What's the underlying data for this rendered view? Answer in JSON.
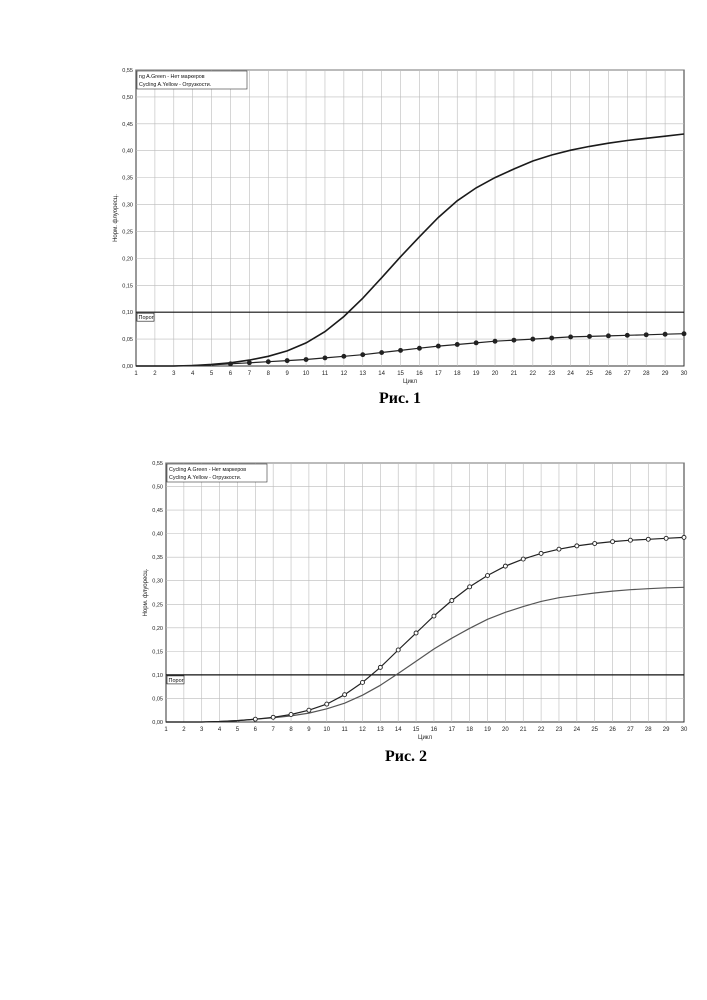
{
  "figures": [
    {
      "caption": "Рис. 1",
      "chart_data": {
        "type": "line",
        "xlabel": "Цикл",
        "ylabel": "Норм. флуоресц.",
        "xlim": [
          1,
          30
        ],
        "ylim": [
          0,
          0.55
        ],
        "x_ticks": [
          "1",
          "2",
          "3",
          "4",
          "5",
          "6",
          "7",
          "8",
          "9",
          "10",
          "11",
          "12",
          "13",
          "14",
          "15",
          "16",
          "17",
          "18",
          "19",
          "20",
          "21",
          "22",
          "23",
          "24",
          "25",
          "26",
          "27",
          "28",
          "29",
          "30"
        ],
        "y_ticks": [
          "0,00",
          "0,05",
          "0,10",
          "0,15",
          "0,20",
          "0,25",
          "0,30",
          "0,35",
          "0,40",
          "0,45",
          "0,50",
          "0,55"
        ],
        "grid": true,
        "legend": "top-left",
        "threshold": {
          "label": "Порог",
          "value": 0.1
        },
        "x": [
          1,
          2,
          3,
          4,
          5,
          6,
          7,
          8,
          9,
          10,
          11,
          12,
          13,
          14,
          15,
          16,
          17,
          18,
          19,
          20,
          21,
          22,
          23,
          24,
          25,
          26,
          27,
          28,
          29,
          30
        ],
        "series": [
          {
            "name": "ng A.Green - Нет маркеров",
            "marker": false,
            "values": [
              0.0,
              0.0,
              0.0,
              0.001,
              0.003,
              0.006,
              0.011,
              0.018,
              0.028,
              0.043,
              0.064,
              0.092,
              0.126,
              0.164,
              0.203,
              0.24,
              0.276,
              0.307,
              0.331,
              0.35,
              0.366,
              0.381,
              0.392,
              0.401,
              0.408,
              0.414,
              0.419,
              0.423,
              0.427,
              0.431
            ]
          },
          {
            "name": "Cycling A.Yellow - Огрузкости.",
            "marker": true,
            "values": [
              0.0,
              0.0,
              0.0,
              0.001,
              0.002,
              0.004,
              0.006,
              0.008,
              0.01,
              0.012,
              0.015,
              0.018,
              0.021,
              0.025,
              0.029,
              0.033,
              0.037,
              0.04,
              0.043,
              0.046,
              0.048,
              0.05,
              0.052,
              0.054,
              0.055,
              0.056,
              0.057,
              0.058,
              0.059,
              0.06
            ]
          }
        ]
      }
    },
    {
      "caption": "Рис. 2",
      "chart_data": {
        "type": "line",
        "xlabel": "Цикл",
        "ylabel": "Норм. флуоресц.",
        "xlim": [
          1,
          30
        ],
        "ylim": [
          0,
          0.55
        ],
        "x_ticks": [
          "1",
          "2",
          "3",
          "4",
          "5",
          "6",
          "7",
          "8",
          "9",
          "10",
          "11",
          "12",
          "13",
          "14",
          "15",
          "16",
          "17",
          "18",
          "19",
          "20",
          "21",
          "22",
          "23",
          "24",
          "25",
          "26",
          "27",
          "28",
          "29",
          "30"
        ],
        "y_ticks": [
          "0,00",
          "0,05",
          "0,10",
          "0,15",
          "0,20",
          "0,25",
          "0,30",
          "0,35",
          "0,40",
          "0,45",
          "0,50",
          "0,55"
        ],
        "grid": true,
        "legend": "top-left",
        "threshold": {
          "label": "Порог",
          "value": 0.1
        },
        "x": [
          1,
          2,
          3,
          4,
          5,
          6,
          7,
          8,
          9,
          10,
          11,
          12,
          13,
          14,
          15,
          16,
          17,
          18,
          19,
          20,
          21,
          22,
          23,
          24,
          25,
          26,
          27,
          28,
          29,
          30
        ],
        "series": [
          {
            "name": "Cycling A.Green - Нет маркеров",
            "marker": false,
            "values": [
              0.0,
              0.0,
              0.0,
              0.001,
              0.003,
              0.006,
              0.009,
              0.013,
              0.019,
              0.028,
              0.04,
              0.057,
              0.078,
              0.103,
              0.129,
              0.155,
              0.178,
              0.199,
              0.218,
              0.233,
              0.245,
              0.256,
              0.264,
              0.269,
              0.274,
              0.278,
              0.281,
              0.283,
              0.285,
              0.286
            ]
          },
          {
            "name": "Cycling A.Yellow - Огрузкости.",
            "marker": true,
            "values": [
              0.0,
              0.0,
              0.0,
              0.001,
              0.003,
              0.006,
              0.01,
              0.016,
              0.025,
              0.038,
              0.058,
              0.084,
              0.116,
              0.153,
              0.189,
              0.225,
              0.258,
              0.287,
              0.311,
              0.331,
              0.346,
              0.358,
              0.367,
              0.374,
              0.379,
              0.383,
              0.386,
              0.388,
              0.39,
              0.392
            ]
          }
        ]
      }
    }
  ]
}
